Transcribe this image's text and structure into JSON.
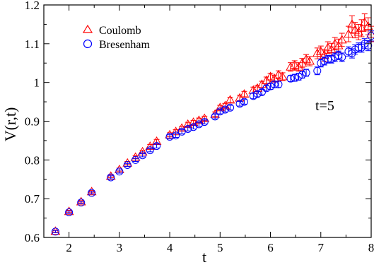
{
  "chart_data": {
    "type": "scatter",
    "xlabel": "t",
    "ylabel": "V(r,t)",
    "xlim": [
      1.5,
      8
    ],
    "ylim": [
      0.6,
      1.2
    ],
    "x_ticks": [
      "2",
      "3",
      "4",
      "5",
      "6",
      "7",
      "8"
    ],
    "y_ticks": [
      "0.6",
      "0.7",
      "0.8",
      "0.9",
      "1",
      "1.1",
      "1.2"
    ],
    "grid": false,
    "legend_position": "top-left",
    "annotation": "t=5",
    "series": [
      {
        "name": "Coulomb",
        "marker": "triangle",
        "color": "#ff0000",
        "points": [
          [
            1.73,
            0.616
          ],
          [
            2.0,
            0.667
          ],
          [
            2.24,
            0.692
          ],
          [
            2.45,
            0.718
          ],
          [
            2.83,
            0.758
          ],
          [
            3.0,
            0.775
          ],
          [
            3.16,
            0.792
          ],
          [
            3.32,
            0.807
          ],
          [
            3.46,
            0.821
          ],
          [
            3.61,
            0.835
          ],
          [
            3.74,
            0.848
          ],
          [
            4.0,
            0.865
          ],
          [
            4.12,
            0.873
          ],
          [
            4.24,
            0.882
          ],
          [
            4.36,
            0.892
          ],
          [
            4.47,
            0.897
          ],
          [
            4.58,
            0.902
          ],
          [
            4.69,
            0.907
          ],
          [
            4.9,
            0.918
          ],
          [
            5.0,
            0.935
          ],
          [
            5.1,
            0.94
          ],
          [
            5.2,
            0.955
          ],
          [
            5.39,
            0.96
          ],
          [
            5.48,
            0.97
          ],
          [
            5.66,
            0.98
          ],
          [
            5.74,
            0.985
          ],
          [
            5.83,
            0.995
          ],
          [
            5.92,
            1.005
          ],
          [
            6.0,
            1.015
          ],
          [
            6.08,
            1.01
          ],
          [
            6.16,
            1.02
          ],
          [
            6.24,
            1.015
          ],
          [
            6.4,
            1.04
          ],
          [
            6.48,
            1.045
          ],
          [
            6.56,
            1.04
          ],
          [
            6.63,
            1.05
          ],
          [
            6.71,
            1.06
          ],
          [
            6.78,
            1.055
          ],
          [
            6.93,
            1.075
          ],
          [
            7.0,
            1.08
          ],
          [
            7.07,
            1.07
          ],
          [
            7.14,
            1.09
          ],
          [
            7.21,
            1.085
          ],
          [
            7.28,
            1.1
          ],
          [
            7.35,
            1.095
          ],
          [
            7.42,
            1.11
          ],
          [
            7.55,
            1.125
          ],
          [
            7.62,
            1.15
          ],
          [
            7.68,
            1.135
          ],
          [
            7.75,
            1.13
          ],
          [
            7.81,
            1.14
          ],
          [
            7.87,
            1.155
          ],
          [
            7.94,
            1.145
          ],
          [
            8.0,
            1.125
          ]
        ],
        "errors": [
          0.003,
          0.003,
          0.003,
          0.003,
          0.004,
          0.004,
          0.004,
          0.004,
          0.004,
          0.005,
          0.005,
          0.005,
          0.005,
          0.005,
          0.005,
          0.005,
          0.006,
          0.006,
          0.006,
          0.006,
          0.006,
          0.007,
          0.007,
          0.007,
          0.008,
          0.008,
          0.008,
          0.009,
          0.009,
          0.009,
          0.01,
          0.01,
          0.011,
          0.011,
          0.011,
          0.012,
          0.012,
          0.012,
          0.014,
          0.014,
          0.015,
          0.015,
          0.016,
          0.016,
          0.017,
          0.017,
          0.02,
          0.022,
          0.02,
          0.02,
          0.022,
          0.022,
          0.022,
          0.02
        ]
      },
      {
        "name": "Bresenham",
        "marker": "circle",
        "color": "#0000ff",
        "points": [
          [
            1.73,
            0.615
          ],
          [
            2.0,
            0.665
          ],
          [
            2.24,
            0.69
          ],
          [
            2.45,
            0.715
          ],
          [
            2.83,
            0.755
          ],
          [
            3.0,
            0.77
          ],
          [
            3.16,
            0.787
          ],
          [
            3.32,
            0.8
          ],
          [
            3.46,
            0.812
          ],
          [
            3.61,
            0.825
          ],
          [
            3.74,
            0.836
          ],
          [
            4.0,
            0.86
          ],
          [
            4.12,
            0.863
          ],
          [
            4.24,
            0.873
          ],
          [
            4.36,
            0.88
          ],
          [
            4.47,
            0.885
          ],
          [
            4.58,
            0.892
          ],
          [
            4.69,
            0.898
          ],
          [
            4.9,
            0.912
          ],
          [
            5.0,
            0.925
          ],
          [
            5.1,
            0.93
          ],
          [
            5.2,
            0.935
          ],
          [
            5.39,
            0.945
          ],
          [
            5.48,
            0.95
          ],
          [
            5.66,
            0.965
          ],
          [
            5.74,
            0.97
          ],
          [
            5.83,
            0.975
          ],
          [
            5.92,
            0.985
          ],
          [
            6.0,
            0.99
          ],
          [
            6.08,
            0.995
          ],
          [
            6.16,
            0.995
          ],
          [
            6.4,
            1.01
          ],
          [
            6.48,
            1.012
          ],
          [
            6.56,
            1.015
          ],
          [
            6.63,
            1.02
          ],
          [
            6.71,
            1.025
          ],
          [
            6.93,
            1.03
          ],
          [
            7.0,
            1.05
          ],
          [
            7.07,
            1.055
          ],
          [
            7.14,
            1.06
          ],
          [
            7.21,
            1.06
          ],
          [
            7.28,
            1.065
          ],
          [
            7.35,
            1.07
          ],
          [
            7.42,
            1.065
          ],
          [
            7.55,
            1.08
          ],
          [
            7.62,
            1.075
          ],
          [
            7.68,
            1.085
          ],
          [
            7.75,
            1.09
          ],
          [
            7.81,
            1.09
          ],
          [
            7.87,
            1.1
          ],
          [
            7.94,
            1.095
          ],
          [
            8.0,
            1.12
          ]
        ],
        "errors": [
          0.003,
          0.003,
          0.003,
          0.003,
          0.004,
          0.004,
          0.004,
          0.004,
          0.004,
          0.004,
          0.005,
          0.005,
          0.005,
          0.005,
          0.005,
          0.005,
          0.005,
          0.005,
          0.006,
          0.006,
          0.006,
          0.006,
          0.006,
          0.006,
          0.007,
          0.007,
          0.007,
          0.007,
          0.008,
          0.008,
          0.008,
          0.008,
          0.009,
          0.009,
          0.009,
          0.009,
          0.01,
          0.01,
          0.01,
          0.01,
          0.01,
          0.011,
          0.011,
          0.011,
          0.012,
          0.012,
          0.012,
          0.012,
          0.012,
          0.013,
          0.013,
          0.013
        ]
      }
    ]
  }
}
